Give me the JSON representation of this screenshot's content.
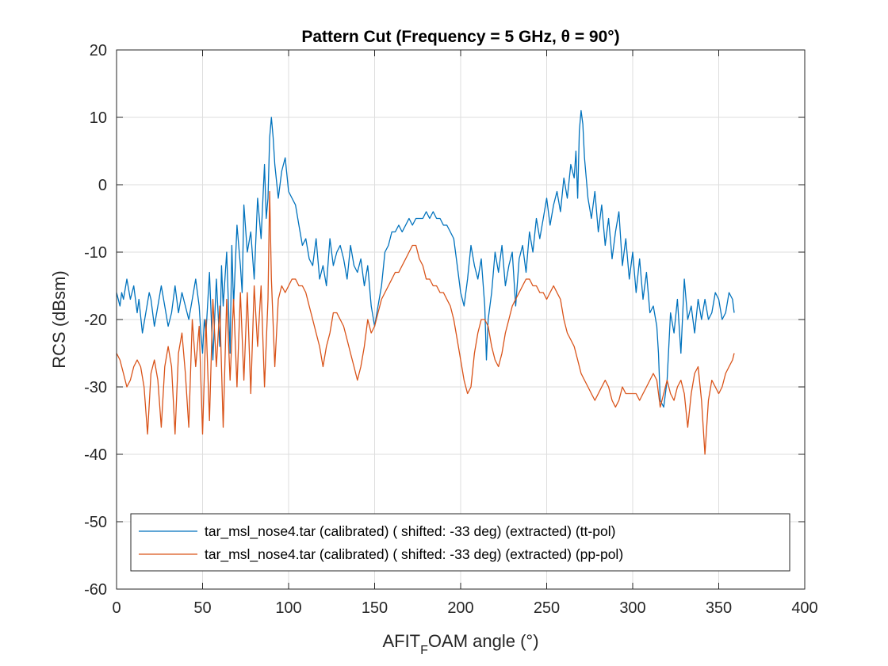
{
  "chart_data": {
    "type": "line",
    "title": "Pattern Cut (Frequency = 5 GHz, θ = 90°)",
    "xlabel": "AFIT",
    "xlabel_sub": "F",
    "xlabel_rest": "OAM angle (°)",
    "ylabel": "RCS (dBsm)",
    "xlim": [
      0,
      400
    ],
    "ylim": [
      -60,
      20
    ],
    "xticks": [
      0,
      50,
      100,
      150,
      200,
      250,
      300,
      350,
      400
    ],
    "yticks": [
      -60,
      -50,
      -40,
      -30,
      -20,
      -10,
      0,
      10,
      20
    ],
    "grid": true,
    "legend_position": "bottom-center",
    "series": [
      {
        "name": "tar_msl_nose4.tar (calibrated) ( shifted: -33 deg) (extracted) (tt-pol)",
        "color": "#0072BD",
        "x": [
          0,
          2,
          3,
          4,
          6,
          8,
          10,
          12,
          13,
          15,
          17,
          19,
          20,
          22,
          24,
          26,
          28,
          30,
          32,
          34,
          36,
          38,
          40,
          42,
          44,
          46,
          48,
          49,
          50,
          51,
          52,
          54,
          56,
          57,
          58,
          60,
          61,
          62,
          64,
          66,
          67,
          68,
          70,
          72,
          73,
          74,
          76,
          78,
          80,
          82,
          84,
          86,
          87,
          88,
          89,
          90,
          91,
          92,
          94,
          96,
          98,
          100,
          102,
          104,
          106,
          108,
          110,
          112,
          114,
          116,
          118,
          120,
          122,
          124,
          126,
          128,
          130,
          132,
          134,
          136,
          138,
          140,
          142,
          144,
          146,
          148,
          150,
          152,
          154,
          156,
          158,
          160,
          162,
          164,
          166,
          168,
          170,
          172,
          174,
          176,
          178,
          180,
          182,
          184,
          186,
          188,
          190,
          192,
          194,
          196,
          198,
          200,
          202,
          204,
          206,
          208,
          210,
          212,
          214,
          215,
          216,
          218,
          220,
          222,
          224,
          226,
          228,
          230,
          232,
          234,
          236,
          238,
          240,
          242,
          244,
          246,
          248,
          250,
          252,
          254,
          256,
          258,
          260,
          262,
          264,
          266,
          267,
          268,
          269,
          270,
          271,
          272,
          274,
          276,
          278,
          280,
          282,
          284,
          286,
          288,
          290,
          292,
          294,
          296,
          298,
          300,
          302,
          304,
          306,
          308,
          310,
          312,
          314,
          315,
          316,
          318,
          320,
          322,
          324,
          326,
          328,
          330,
          332,
          334,
          336,
          338,
          340,
          342,
          344,
          346,
          348,
          350,
          352,
          354,
          356,
          358,
          359
        ],
        "y": [
          -16,
          -18,
          -16,
          -17,
          -14,
          -17,
          -15,
          -19,
          -17,
          -22,
          -19,
          -16,
          -17,
          -21,
          -18,
          -15,
          -18,
          -21,
          -19,
          -15,
          -19,
          -16,
          -18,
          -20,
          -17,
          -14,
          -18,
          -22,
          -25,
          -20,
          -22,
          -13,
          -26,
          -20,
          -14,
          -24,
          -12,
          -18,
          -10,
          -25,
          -9,
          -18,
          -6,
          -12,
          -16,
          -3,
          -10,
          -7,
          -14,
          -2,
          -8,
          3,
          -5,
          -2,
          7,
          10,
          7,
          3,
          -2,
          2,
          4,
          -1,
          -2,
          -3,
          -6,
          -9,
          -8,
          -11,
          -12,
          -8,
          -14,
          -12,
          -15,
          -8,
          -12,
          -10,
          -9,
          -11,
          -14,
          -9,
          -12,
          -13,
          -11,
          -15,
          -12,
          -18,
          -21,
          -18,
          -15,
          -10,
          -9,
          -7,
          -7,
          -6,
          -7,
          -6,
          -5,
          -6,
          -5,
          -5,
          -5,
          -4,
          -5,
          -4,
          -5,
          -5,
          -6,
          -6,
          -7,
          -8,
          -12,
          -16,
          -18,
          -14,
          -9,
          -12,
          -14,
          -11,
          -18,
          -26,
          -20,
          -16,
          -10,
          -13,
          -9,
          -15,
          -12,
          -10,
          -18,
          -11,
          -9,
          -13,
          -7,
          -10,
          -5,
          -8,
          -5,
          -2,
          -6,
          -3,
          -1,
          -4,
          1,
          -2,
          3,
          1,
          5,
          -2,
          8,
          11,
          9,
          4,
          -2,
          -5,
          -1,
          -7,
          -3,
          -9,
          -5,
          -11,
          -7,
          -4,
          -12,
          -8,
          -14,
          -10,
          -16,
          -11,
          -17,
          -13,
          -19,
          -18,
          -21,
          -25,
          -32,
          -33,
          -29,
          -19,
          -22,
          -17,
          -25,
          -14,
          -20,
          -18,
          -22,
          -17,
          -20,
          -17,
          -20,
          -19,
          -16,
          -17,
          -20,
          -19,
          -16,
          -17,
          -19
        ]
      },
      {
        "name": "tar_msl_nose4.tar (calibrated) ( shifted: -33 deg) (extracted) (pp-pol)",
        "color": "#D95319",
        "x": [
          0,
          2,
          4,
          6,
          8,
          10,
          12,
          14,
          16,
          18,
          20,
          22,
          24,
          26,
          28,
          30,
          32,
          34,
          36,
          38,
          40,
          42,
          44,
          46,
          48,
          50,
          52,
          54,
          56,
          58,
          60,
          62,
          64,
          66,
          68,
          70,
          72,
          74,
          76,
          78,
          80,
          82,
          84,
          86,
          88,
          89,
          90,
          92,
          94,
          96,
          98,
          100,
          102,
          104,
          106,
          108,
          110,
          112,
          114,
          116,
          118,
          120,
          122,
          124,
          126,
          128,
          130,
          132,
          134,
          136,
          138,
          140,
          142,
          144,
          146,
          148,
          150,
          152,
          154,
          156,
          158,
          160,
          162,
          164,
          166,
          168,
          170,
          172,
          174,
          176,
          178,
          180,
          182,
          184,
          186,
          188,
          190,
          192,
          194,
          196,
          198,
          200,
          202,
          204,
          206,
          208,
          210,
          212,
          214,
          216,
          218,
          220,
          222,
          224,
          226,
          228,
          230,
          232,
          234,
          236,
          238,
          240,
          242,
          244,
          246,
          248,
          250,
          252,
          254,
          256,
          258,
          260,
          262,
          264,
          266,
          268,
          270,
          272,
          274,
          276,
          278,
          280,
          282,
          284,
          286,
          288,
          290,
          292,
          294,
          296,
          298,
          300,
          302,
          304,
          306,
          308,
          310,
          312,
          314,
          316,
          318,
          320,
          322,
          324,
          326,
          328,
          330,
          332,
          334,
          336,
          338,
          340,
          342,
          344,
          346,
          348,
          350,
          352,
          354,
          356,
          358,
          359
        ],
        "y": [
          -25,
          -26,
          -28,
          -30,
          -29,
          -27,
          -26,
          -27,
          -30,
          -37,
          -28,
          -26,
          -29,
          -36,
          -27,
          -24,
          -27,
          -37,
          -25,
          -22,
          -28,
          -36,
          -20,
          -27,
          -21,
          -37,
          -20,
          -35,
          -17,
          -27,
          -18,
          -36,
          -17,
          -29,
          -17,
          -30,
          -16,
          -29,
          -16,
          -31,
          -15,
          -24,
          -15,
          -30,
          -17,
          -1,
          -14,
          -27,
          -17,
          -15,
          -16,
          -15,
          -14,
          -14,
          -15,
          -15,
          -16,
          -18,
          -20,
          -22,
          -24,
          -27,
          -24,
          -22,
          -19,
          -19,
          -20,
          -21,
          -23,
          -25,
          -27,
          -29,
          -27,
          -24,
          -20,
          -22,
          -21,
          -19,
          -17,
          -16,
          -15,
          -14,
          -13,
          -13,
          -12,
          -11,
          -10,
          -9,
          -9,
          -11,
          -12,
          -14,
          -14,
          -15,
          -15,
          -16,
          -16,
          -17,
          -18,
          -20,
          -23,
          -26,
          -29,
          -31,
          -30,
          -25,
          -22,
          -20,
          -20,
          -21,
          -24,
          -26,
          -27,
          -25,
          -22,
          -20,
          -18,
          -17,
          -16,
          -15,
          -14,
          -14,
          -15,
          -15,
          -16,
          -16,
          -17,
          -16,
          -15,
          -16,
          -17,
          -20,
          -22,
          -23,
          -24,
          -26,
          -28,
          -29,
          -30,
          -31,
          -32,
          -31,
          -30,
          -29,
          -30,
          -32,
          -33,
          -32,
          -30,
          -31,
          -31,
          -31,
          -31,
          -32,
          -31,
          -30,
          -29,
          -28,
          -29,
          -33,
          -31,
          -29,
          -31,
          -32,
          -30,
          -29,
          -31,
          -36,
          -31,
          -28,
          -27,
          -32,
          -40,
          -32,
          -29,
          -30,
          -31,
          -30,
          -28,
          -27,
          -26,
          -25
        ]
      }
    ]
  }
}
